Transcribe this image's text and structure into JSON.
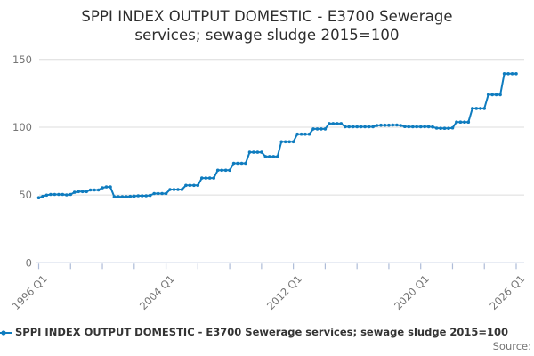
{
  "title_lines": [
    "SPPI INDEX OUTPUT DOMESTIC - E3700 Sewerage",
    "services; sewage sludge 2015=100"
  ],
  "source_label": "Source:",
  "colors": {
    "line": "#0f7cbf",
    "grid": "#dcdcdc",
    "axis": "#c2cce0",
    "tick": "#aebcd8",
    "axis_text": "#757575",
    "title_text": "#2d2d2d",
    "legend_text": "#333333",
    "source_text": "#757575",
    "background": "#ffffff"
  },
  "chart_data": {
    "type": "line",
    "title": "SPPI INDEX OUTPUT DOMESTIC - E3700 Sewerage services; sewage sludge 2015=100",
    "x_start": "1996 Q1",
    "x_end": "2026 Q1",
    "x_frequency": "quarterly",
    "ylim": [
      0,
      150
    ],
    "yticks": [
      0,
      50,
      100,
      150
    ],
    "xtick_every_quarters": 8,
    "xtick_labels": [
      {
        "label": "1996 Q1",
        "q": 0
      },
      {
        "label": "2004 Q1",
        "q": 32
      },
      {
        "label": "2012 Q1",
        "q": 64
      },
      {
        "label": "2020 Q1",
        "q": 96
      },
      {
        "label": "2026 Q1",
        "q": 120
      }
    ],
    "grid": "horizontal",
    "marker": "circle",
    "legend_position": "bottom-left",
    "series": [
      {
        "name": "SPPI INDEX OUTPUT DOMESTIC - E3700 Sewerage services; sewage sludge 2015=100",
        "values": [
          48.0,
          49.0,
          49.9,
          50.4,
          50.4,
          50.4,
          50.4,
          50.1,
          50.4,
          52.0,
          52.5,
          52.5,
          52.5,
          53.7,
          53.7,
          53.7,
          55.3,
          55.9,
          55.9,
          48.7,
          48.7,
          48.7,
          48.7,
          49.0,
          49.2,
          49.4,
          49.4,
          49.4,
          49.7,
          51.1,
          51.1,
          51.1,
          51.1,
          54.0,
          54.0,
          54.0,
          54.0,
          57.1,
          57.1,
          57.1,
          57.1,
          62.5,
          62.5,
          62.5,
          62.5,
          68.3,
          68.3,
          68.3,
          68.3,
          73.4,
          73.4,
          73.4,
          73.4,
          81.5,
          81.5,
          81.5,
          81.5,
          78.4,
          78.4,
          78.4,
          78.4,
          89.3,
          89.3,
          89.3,
          89.3,
          94.9,
          94.9,
          94.9,
          94.9,
          98.7,
          98.7,
          98.7,
          98.7,
          102.7,
          102.7,
          102.7,
          102.7,
          100.3,
          100.3,
          100.3,
          100.3,
          100.3,
          100.3,
          100.3,
          100.3,
          101.3,
          101.5,
          101.5,
          101.5,
          101.6,
          101.6,
          101.3,
          100.5,
          100.3,
          100.3,
          100.3,
          100.3,
          100.4,
          100.4,
          100.2,
          99.3,
          99.2,
          99.2,
          99.2,
          99.5,
          103.8,
          103.8,
          103.8,
          103.8,
          113.8,
          113.8,
          113.8,
          113.8,
          124.0,
          124.0,
          124.0,
          124.0,
          139.5,
          139.5,
          139.5,
          139.5
        ]
      }
    ]
  }
}
